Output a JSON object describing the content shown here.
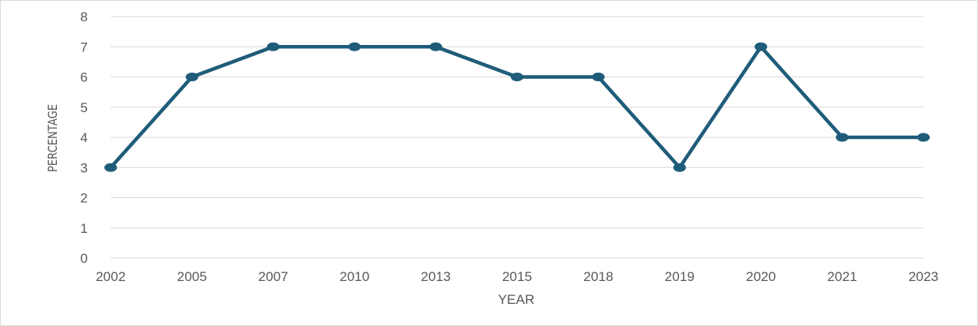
{
  "chart_data": {
    "type": "line",
    "title": "",
    "xlabel": "YEAR",
    "ylabel": "PERCENTAGE",
    "categories": [
      "2002",
      "2005",
      "2007",
      "2010",
      "2013",
      "2015",
      "2018",
      "2019",
      "2020",
      "2021",
      "2023"
    ],
    "series": [
      {
        "name": "",
        "values": [
          3,
          6,
          7,
          7,
          7,
          6,
          6,
          3,
          7,
          4,
          4
        ]
      }
    ],
    "ylim": [
      0,
      8
    ],
    "yticks": [
      "0",
      "1",
      "2",
      "3",
      "4",
      "5",
      "6",
      "7",
      "8"
    ],
    "grid": true,
    "legend": "none",
    "colors": {
      "line": "#1f5c7a",
      "grid": "#d9d9d9",
      "text": "#595959"
    }
  }
}
